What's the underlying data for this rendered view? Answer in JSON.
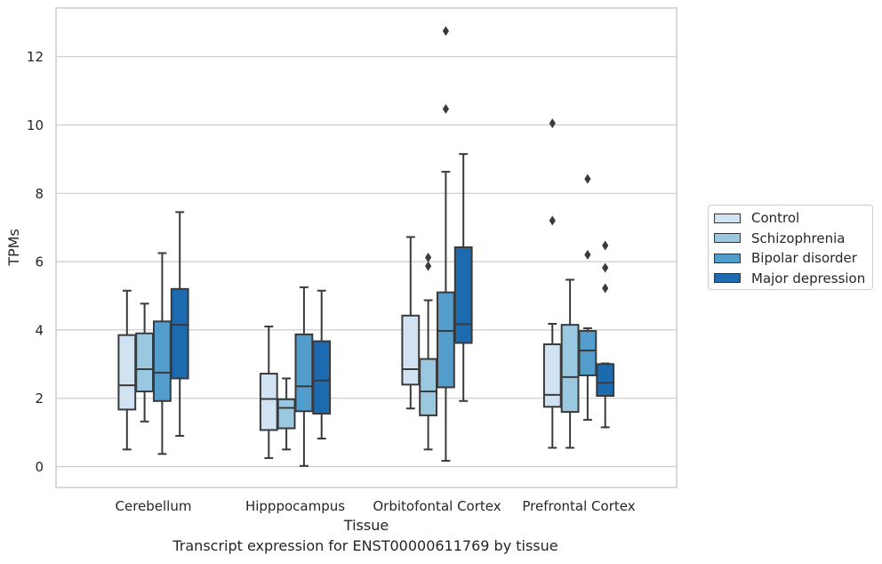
{
  "caption": "Transcript expression for ENST00000611769 by tissue",
  "chart_data": {
    "type": "box",
    "xlabel": "Tissue",
    "ylabel": "TPMs",
    "ylim": [
      -0.6,
      13.4
    ],
    "yticks": [
      0,
      2,
      4,
      6,
      8,
      10,
      12
    ],
    "grid": "horizontal",
    "legend_placement": "outside-right",
    "categories": [
      "Cerebellum",
      "Hipppocampus",
      "Orbitofontal Cortex",
      "Prefrontal Cortex"
    ],
    "series": [
      {
        "name": "Control",
        "color": "#d1e2f2",
        "boxes": [
          {
            "whislo": 0.5,
            "q1": 1.67,
            "med": 2.38,
            "q3": 3.85,
            "whishi": 5.15,
            "fliers": []
          },
          {
            "whislo": 0.25,
            "q1": 1.07,
            "med": 1.98,
            "q3": 2.72,
            "whishi": 4.1,
            "fliers": []
          },
          {
            "whislo": 1.7,
            "q1": 2.4,
            "med": 2.85,
            "q3": 4.42,
            "whishi": 6.72,
            "fliers": []
          },
          {
            "whislo": 0.55,
            "q1": 1.75,
            "med": 2.1,
            "q3": 3.58,
            "whishi": 4.18,
            "fliers": [
              7.2,
              10.05
            ]
          }
        ]
      },
      {
        "name": "Schizophrenia",
        "color": "#9ac8e0",
        "boxes": [
          {
            "whislo": 1.32,
            "q1": 2.2,
            "med": 2.85,
            "q3": 3.9,
            "whishi": 4.77,
            "fliers": []
          },
          {
            "whislo": 0.5,
            "q1": 1.12,
            "med": 1.72,
            "q3": 1.97,
            "whishi": 2.58,
            "fliers": []
          },
          {
            "whislo": 0.5,
            "q1": 1.5,
            "med": 2.2,
            "q3": 3.15,
            "whishi": 4.87,
            "fliers": [
              5.87,
              6.12
            ]
          },
          {
            "whislo": 0.55,
            "q1": 1.6,
            "med": 2.62,
            "q3": 4.15,
            "whishi": 5.47,
            "fliers": []
          }
        ]
      },
      {
        "name": "Bipolar disorder",
        "color": "#529dcc",
        "boxes": [
          {
            "whislo": 0.37,
            "q1": 1.92,
            "med": 2.75,
            "q3": 4.25,
            "whishi": 6.25,
            "fliers": []
          },
          {
            "whislo": 0.02,
            "q1": 1.62,
            "med": 2.35,
            "q3": 3.87,
            "whishi": 5.25,
            "fliers": []
          },
          {
            "whislo": 0.17,
            "q1": 2.32,
            "med": 3.97,
            "q3": 5.1,
            "whishi": 8.63,
            "fliers": [
              10.47,
              12.75
            ]
          },
          {
            "whislo": 1.37,
            "q1": 2.67,
            "med": 3.4,
            "q3": 3.97,
            "whishi": 4.05,
            "fliers": [
              6.2,
              8.42
            ]
          }
        ]
      },
      {
        "name": "Major depression",
        "color": "#1c6aaf",
        "boxes": [
          {
            "whislo": 0.9,
            "q1": 2.58,
            "med": 4.15,
            "q3": 5.2,
            "whishi": 7.45,
            "fliers": []
          },
          {
            "whislo": 0.82,
            "q1": 1.55,
            "med": 2.52,
            "q3": 3.67,
            "whishi": 5.15,
            "fliers": []
          },
          {
            "whislo": 1.92,
            "q1": 3.62,
            "med": 4.17,
            "q3": 6.42,
            "whishi": 9.15,
            "fliers": []
          },
          {
            "whislo": 1.15,
            "q1": 2.07,
            "med": 2.45,
            "q3": 3.0,
            "whishi": 3.02,
            "fliers": [
              5.22,
              5.82,
              6.47
            ]
          }
        ]
      }
    ]
  }
}
